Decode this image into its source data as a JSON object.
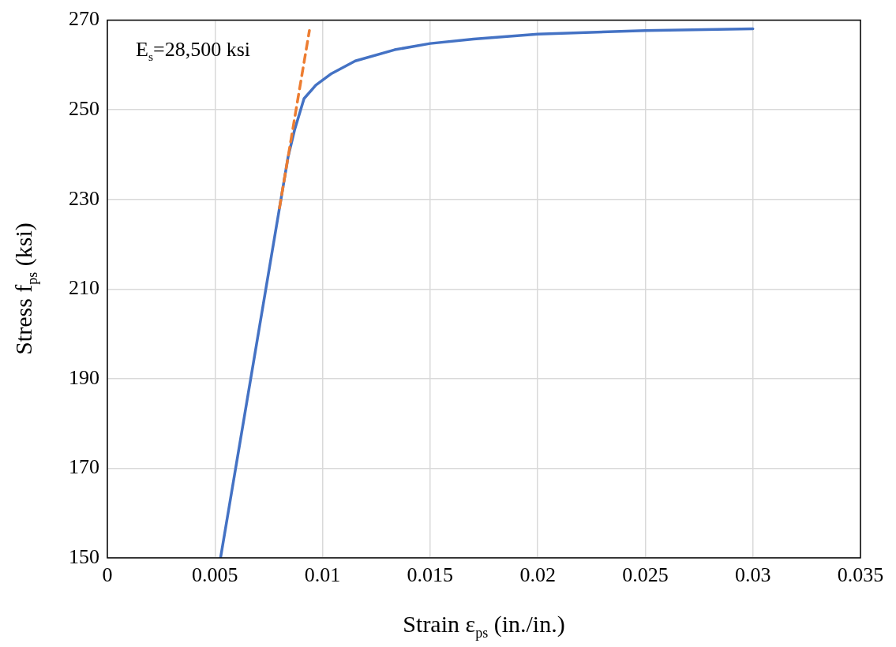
{
  "chart_data": {
    "type": "line",
    "xlabel": "Strain ε$_{ps}$ (in./in.)",
    "ylabel": "Stress f$_{ps}$ (ksi)",
    "annotations": [
      "E$_{s}$=28,500 ksi"
    ],
    "xlim": [
      0,
      0.035
    ],
    "xticks": [
      0,
      0.005,
      0.01,
      0.015,
      0.02,
      0.025,
      0.03,
      0.035
    ],
    "ylim": [
      150,
      270
    ],
    "yticks": [
      150,
      170,
      190,
      210,
      230,
      250,
      270
    ],
    "grid": true,
    "legend": false,
    "marker": "none",
    "series": [
      {
        "color": "#4472c4",
        "line_style": "solid",
        "x": [
          0.00526,
          0.0082,
          0.0084,
          0.0087,
          0.00914,
          0.00969,
          0.01042,
          0.01152,
          0.01335,
          0.015,
          0.01702,
          0.02,
          0.025,
          0.03
        ],
        "values": [
          150,
          233.8,
          239.5,
          245.5,
          252.5,
          255.5,
          258.1,
          260.9,
          263.4,
          264.8,
          265.8,
          266.9,
          267.7,
          268.1
        ]
      },
      {
        "color": "#ed7d31",
        "line_style": "dashed",
        "x": [
          0.008,
          0.00939
        ],
        "values": [
          228.1,
          267.7
        ]
      }
    ]
  }
}
